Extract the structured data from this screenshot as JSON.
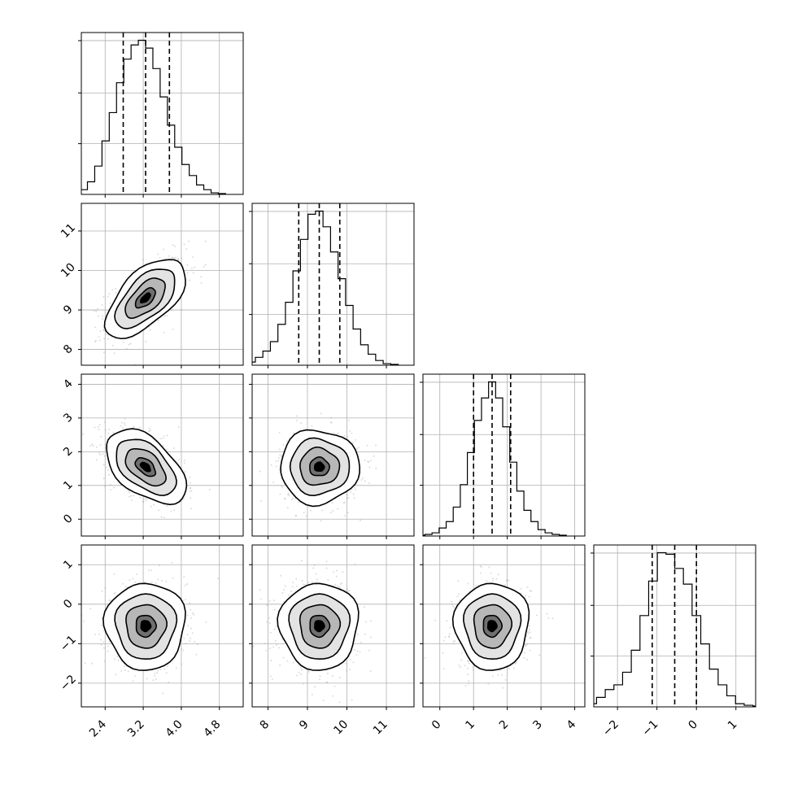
{
  "chart_data": {
    "type": "corner",
    "parameters": [
      {
        "ticks": [
          2.4,
          3.2,
          4.0,
          4.8
        ],
        "tick_labels": [
          "2.4",
          "3.2",
          "4.0",
          "4.8"
        ],
        "range": [
          1.9,
          5.3
        ],
        "mean": 3.25,
        "sd": 0.42,
        "quantiles": [
          2.78,
          3.25,
          3.75
        ],
        "hist": [
          0.5,
          1,
          3,
          8,
          18,
          34,
          52,
          71,
          86,
          95,
          98,
          93,
          80,
          62,
          44,
          30,
          19,
          12,
          6,
          3,
          1,
          0.5
        ]
      },
      {
        "ticks": [
          8,
          9,
          10,
          11
        ],
        "tick_labels": [
          "8",
          "9",
          "10",
          "11"
        ],
        "range": [
          7.6,
          11.7
        ],
        "mean": 9.3,
        "sd": 0.5,
        "quantiles": [
          8.78,
          9.3,
          9.82
        ],
        "hist": [
          0.5,
          2,
          5,
          9,
          15,
          26,
          40,
          60,
          80,
          96,
          98,
          88,
          72,
          55,
          38,
          23,
          13,
          7,
          3,
          1,
          0.5
        ]
      },
      {
        "ticks": [
          0,
          1,
          2,
          3,
          4
        ],
        "tick_labels": [
          "0",
          "1",
          "2",
          "3",
          "4"
        ],
        "range": [
          -0.5,
          4.3
        ],
        "mean": 1.55,
        "sd": 0.55,
        "quantiles": [
          1.0,
          1.55,
          2.1
        ],
        "hist": [
          0.5,
          1,
          2,
          5,
          9,
          18,
          32,
          52,
          72,
          86,
          96,
          86,
          68,
          46,
          28,
          16,
          9,
          4,
          2,
          1,
          0.5
        ]
      },
      {
        "ticks": [
          -2,
          -1,
          0,
          1
        ],
        "tick_labels": [
          "−2",
          "−1",
          "0",
          "1"
        ],
        "range": [
          -2.6,
          1.5
        ],
        "mean": -0.55,
        "sd": 0.55,
        "quantiles": [
          -1.12,
          -0.55,
          0.0
        ],
        "hist": [
          2,
          6,
          11,
          14,
          22,
          36,
          58,
          80,
          98,
          97,
          88,
          78,
          58,
          40,
          24,
          14,
          7,
          2,
          1,
          0.5
        ]
      }
    ],
    "correlations": [
      [
        1,
        0.6,
        -0.5,
        0
      ],
      [
        0.6,
        1,
        0,
        0
      ],
      [
        -0.5,
        0,
        1,
        0
      ],
      [
        0,
        0,
        0,
        1
      ]
    ],
    "contour_levels_sigma": [
      0.5,
      1.0,
      1.5,
      2.0
    ],
    "grid": true
  }
}
